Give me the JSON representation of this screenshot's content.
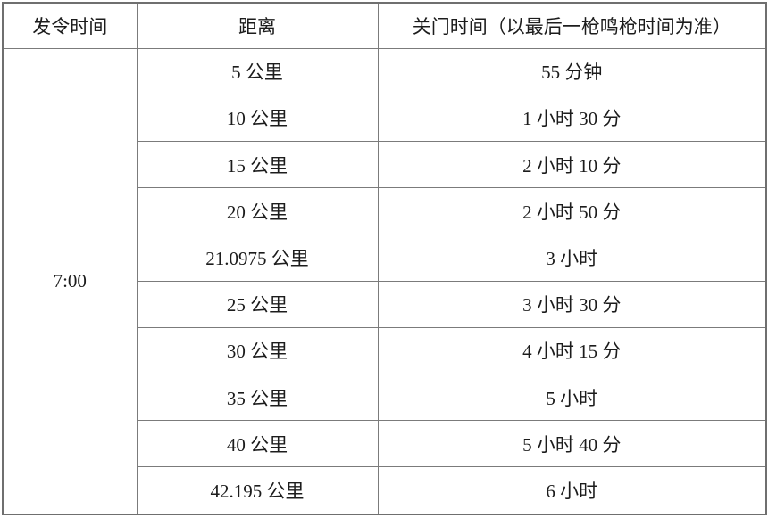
{
  "page": {
    "background_color": "#ffffff",
    "text_color": "#1c1c1c",
    "border_color": "#7b7b7b"
  },
  "table": {
    "headers": [
      "发令时间",
      "距离",
      "关门时间（以最后一枪鸣枪时间为准）"
    ],
    "start_time": "7:00",
    "rows": [
      {
        "distance": "5 公里",
        "cutoff": "55 分钟"
      },
      {
        "distance": "10 公里",
        "cutoff": "1 小时 30 分"
      },
      {
        "distance": "15 公里",
        "cutoff": "2 小时 10 分"
      },
      {
        "distance": "20 公里",
        "cutoff": "2 小时 50 分"
      },
      {
        "distance": "21.0975 公里",
        "cutoff": "3 小时"
      },
      {
        "distance": "25 公里",
        "cutoff": "3 小时 30 分"
      },
      {
        "distance": "30 公里",
        "cutoff": "4 小时 15 分"
      },
      {
        "distance": "35 公里",
        "cutoff": "5 小时"
      },
      {
        "distance": "40 公里",
        "cutoff": "5 小时 40 分"
      },
      {
        "distance": "42.195 公里",
        "cutoff": "6 小时"
      }
    ]
  }
}
